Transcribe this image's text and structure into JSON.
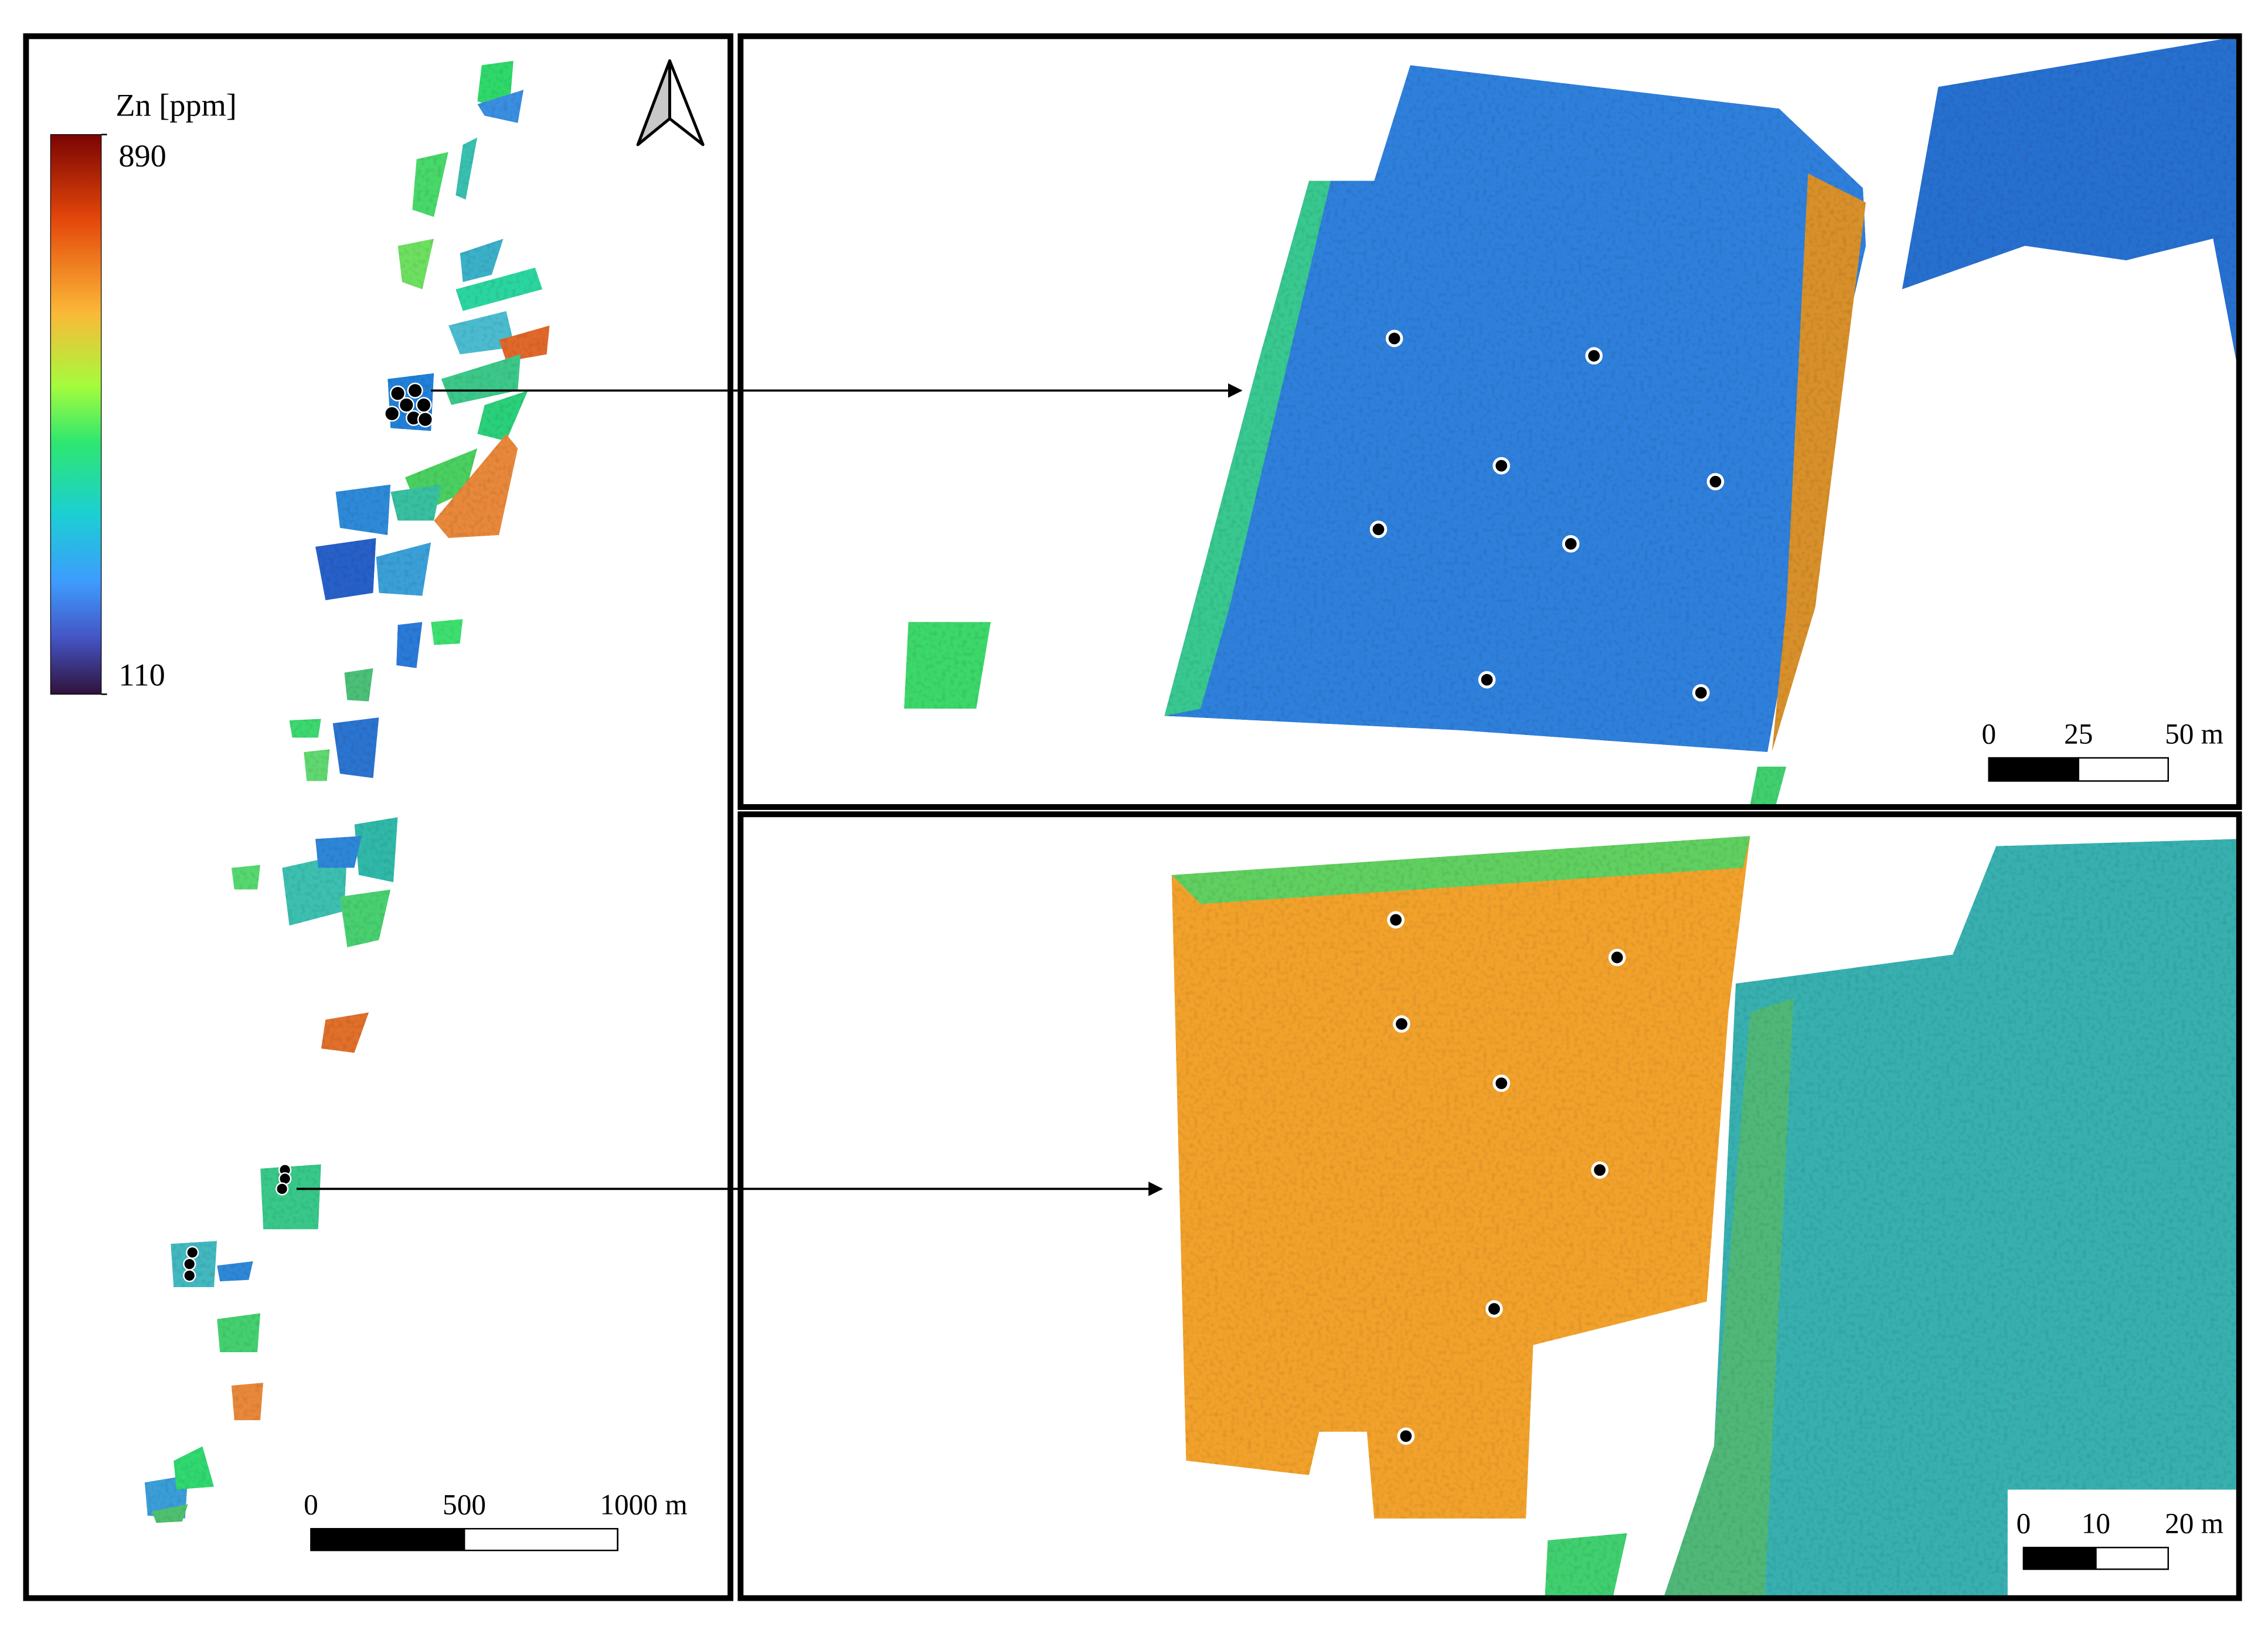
{
  "legend": {
    "title": "Zn [ppm]",
    "max": 890,
    "min": 110
  },
  "overview": {
    "scale_bar": {
      "ticks": [
        0,
        500,
        {
          "value": 1000,
          "label": "1000 m"
        }
      ]
    }
  },
  "inset_top": {
    "scale_bar": {
      "ticks": [
        0,
        25,
        {
          "value": 50,
          "label": "50 m"
        }
      ]
    }
  },
  "inset_bottom": {
    "scale_bar": {
      "ticks": [
        0,
        10,
        {
          "value": 20,
          "label": "20 m"
        }
      ]
    }
  }
}
